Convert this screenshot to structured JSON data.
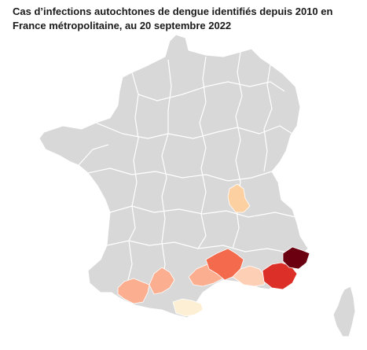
{
  "title": "Cas d’infections autochtones de dengue identifiés depuis 2010 en France métropolitaine, au 20 septembre 2022",
  "colors": {
    "background": "#ffffff",
    "land": "#d8d8d8",
    "borders": "#ffffff",
    "scale": [
      "#fdf0d5",
      "#fcd2b5",
      "#fcae91",
      "#fb6a4a",
      "#e0302a",
      "#67000d"
    ]
  },
  "regions": [
    {
      "name": "france-metropolitan",
      "level": "no-cases"
    },
    {
      "name": "corsica",
      "level": "no-cases"
    },
    {
      "name": "rhone-lyon",
      "level": "very-low"
    },
    {
      "name": "pyrenees-orientales",
      "level": "very-low"
    },
    {
      "name": "pyrenees-atlantiques",
      "level": "low"
    },
    {
      "name": "haute-garonne",
      "level": "low"
    },
    {
      "name": "gard-herault",
      "level": "low"
    },
    {
      "name": "bouches-du-rhone",
      "level": "very-low"
    },
    {
      "name": "vaucluse",
      "level": "medium"
    },
    {
      "name": "var",
      "level": "high"
    },
    {
      "name": "alpes-maritimes",
      "level": "very-high"
    }
  ]
}
